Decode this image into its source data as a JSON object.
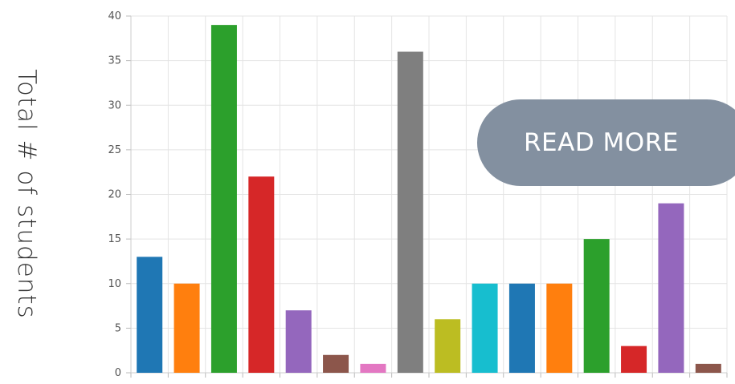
{
  "chart_data": {
    "type": "bar",
    "title": "",
    "xlabel": "",
    "ylabel": "Total # of students",
    "ylim": [
      0,
      40
    ],
    "yticks": [
      0,
      5,
      10,
      15,
      20,
      25,
      30,
      35,
      40
    ],
    "grid": true,
    "values": [
      13,
      10,
      39,
      22,
      7,
      2,
      1,
      36,
      6,
      10,
      10,
      10,
      15,
      3,
      19,
      1
    ],
    "colors": [
      "#1f77b4",
      "#ff7f0e",
      "#2ca02c",
      "#d62728",
      "#9467bd",
      "#8c564b",
      "#e377c2",
      "#7f7f7f",
      "#bcbd22",
      "#17becf",
      "#1f77b4",
      "#ff7f0e",
      "#2ca02c",
      "#d62728",
      "#9467bd",
      "#8c564b"
    ]
  },
  "read_more": {
    "label": "READ MORE"
  }
}
